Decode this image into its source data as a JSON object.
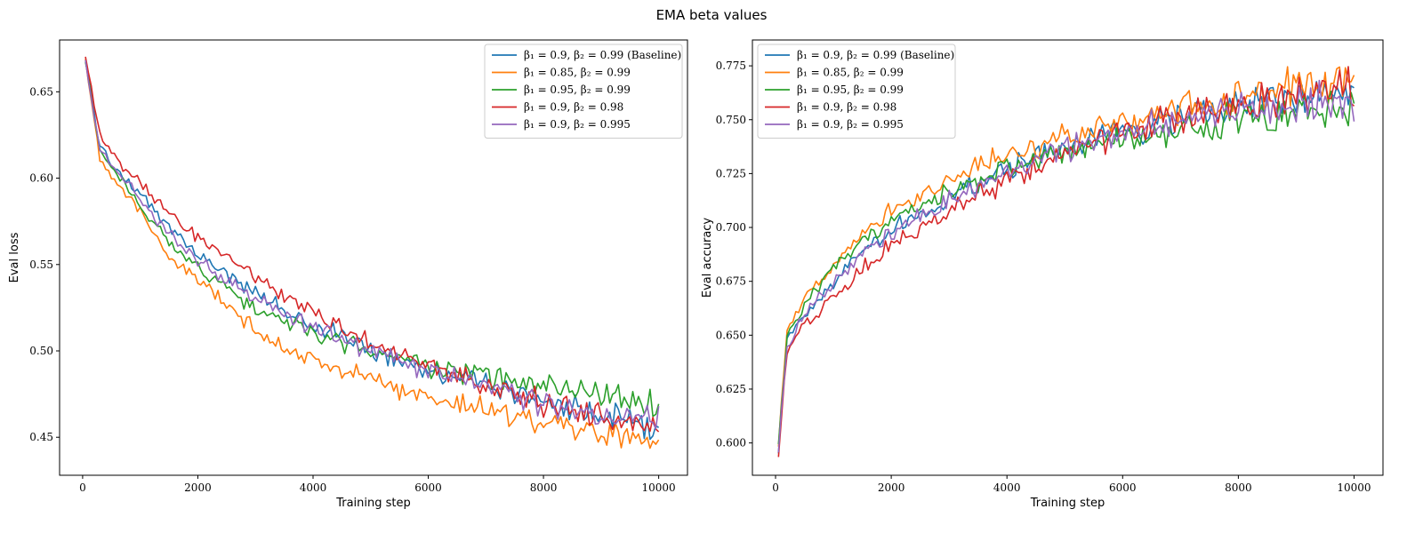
{
  "figure": {
    "suptitle": "EMA beta values"
  },
  "chart_data": [
    {
      "type": "line",
      "title": "",
      "xlabel": "Training step",
      "ylabel": "Eval loss",
      "xlim": [
        -400,
        10500
      ],
      "ylim": [
        0.428,
        0.68
      ],
      "xticks": [
        0,
        2000,
        4000,
        6000,
        8000,
        10000
      ],
      "yticks": [
        0.45,
        0.5,
        0.55,
        0.6,
        0.65
      ],
      "ytick_labels": [
        "0.45",
        "0.50",
        "0.55",
        "0.60",
        "0.65"
      ],
      "legend_position": "top-right",
      "series": [
        {
          "name": "β1 = 0.9, β2 = 0.99 (Baseline)",
          "legend_label": "β₁ = 0.9, β₂ = 0.99 (Baseline)",
          "color": "#1f77b4",
          "x": [
            50,
            300,
            600,
            1000,
            1500,
            2000,
            3000,
            4000,
            5000,
            6000,
            7000,
            8000,
            9000,
            10000
          ],
          "y": [
            0.668,
            0.618,
            0.605,
            0.59,
            0.572,
            0.556,
            0.533,
            0.515,
            0.501,
            0.49,
            0.48,
            0.471,
            0.462,
            0.456
          ]
        },
        {
          "name": "β1 = 0.85, β2 = 0.99",
          "legend_label": "β₁ = 0.85, β₂ = 0.99",
          "color": "#ff7f0e",
          "x": [
            50,
            300,
            600,
            1000,
            1500,
            2000,
            3000,
            4000,
            5000,
            6000,
            7000,
            8000,
            9000,
            10000
          ],
          "y": [
            0.668,
            0.612,
            0.598,
            0.58,
            0.555,
            0.541,
            0.512,
            0.494,
            0.483,
            0.474,
            0.466,
            0.459,
            0.453,
            0.449
          ]
        },
        {
          "name": "β1 = 0.95, β2 = 0.99",
          "legend_label": "β₁ = 0.95, β₂ = 0.99",
          "color": "#2ca02c",
          "x": [
            50,
            300,
            600,
            1000,
            1500,
            2000,
            3000,
            4000,
            5000,
            6000,
            7000,
            8000,
            9000,
            10000
          ],
          "y": [
            0.668,
            0.615,
            0.602,
            0.585,
            0.562,
            0.549,
            0.524,
            0.51,
            0.499,
            0.491,
            0.485,
            0.479,
            0.474,
            0.47
          ]
        },
        {
          "name": "β1 = 0.9, β2 = 0.98",
          "legend_label": "β₁ = 0.9, β₂ = 0.98",
          "color": "#d62728",
          "x": [
            50,
            300,
            600,
            1000,
            1500,
            2000,
            3000,
            4000,
            5000,
            6000,
            7000,
            8000,
            9000,
            10000
          ],
          "y": [
            0.67,
            0.625,
            0.61,
            0.597,
            0.58,
            0.566,
            0.543,
            0.522,
            0.505,
            0.492,
            0.481,
            0.47,
            0.461,
            0.454
          ]
        },
        {
          "name": "β1 = 0.9, β2 = 0.995",
          "legend_label": "β₁ = 0.9, β₂ = 0.995",
          "color": "#9467bd",
          "x": [
            50,
            300,
            600,
            1000,
            1500,
            2000,
            3000,
            4000,
            5000,
            6000,
            7000,
            8000,
            9000,
            10000
          ],
          "y": [
            0.667,
            0.617,
            0.604,
            0.588,
            0.568,
            0.552,
            0.53,
            0.513,
            0.5,
            0.489,
            0.479,
            0.47,
            0.462,
            0.458
          ]
        }
      ]
    },
    {
      "type": "line",
      "title": "",
      "xlabel": "Training step",
      "ylabel": "Eval accuracy",
      "xlim": [
        -400,
        10500
      ],
      "ylim": [
        0.585,
        0.787
      ],
      "xticks": [
        0,
        2000,
        4000,
        6000,
        8000,
        10000
      ],
      "yticks": [
        0.6,
        0.625,
        0.65,
        0.675,
        0.7,
        0.725,
        0.75,
        0.775
      ],
      "ytick_labels": [
        "0.600",
        "0.625",
        "0.650",
        "0.675",
        "0.700",
        "0.725",
        "0.750",
        "0.775"
      ],
      "legend_position": "top-left",
      "series": [
        {
          "name": "β1 = 0.9, β2 = 0.99 (Baseline)",
          "legend_label": "β₁ = 0.9, β₂ = 0.99 (Baseline)",
          "color": "#1f77b4",
          "x": [
            50,
            200,
            500,
            1000,
            1500,
            2000,
            3000,
            4000,
            5000,
            6000,
            7000,
            8000,
            9000,
            10000
          ],
          "y": [
            0.598,
            0.648,
            0.66,
            0.675,
            0.689,
            0.699,
            0.714,
            0.727,
            0.737,
            0.745,
            0.751,
            0.756,
            0.759,
            0.762
          ]
        },
        {
          "name": "β1 = 0.85, β2 = 0.99",
          "legend_label": "β₁ = 0.85, β₂ = 0.99",
          "color": "#ff7f0e",
          "x": [
            50,
            200,
            500,
            1000,
            1500,
            2000,
            3000,
            4000,
            5000,
            6000,
            7000,
            8000,
            9000,
            10000
          ],
          "y": [
            0.6,
            0.652,
            0.666,
            0.684,
            0.698,
            0.708,
            0.722,
            0.734,
            0.742,
            0.749,
            0.755,
            0.76,
            0.765,
            0.768
          ]
        },
        {
          "name": "β1 = 0.95, β2 = 0.99",
          "legend_label": "β₁ = 0.95, β₂ = 0.99",
          "color": "#2ca02c",
          "x": [
            50,
            200,
            500,
            1000,
            1500,
            2000,
            3000,
            4000,
            5000,
            6000,
            7000,
            8000,
            9000,
            10000
          ],
          "y": [
            0.6,
            0.65,
            0.664,
            0.681,
            0.694,
            0.703,
            0.716,
            0.727,
            0.735,
            0.741,
            0.745,
            0.749,
            0.752,
            0.755
          ]
        },
        {
          "name": "β1 = 0.9, β2 = 0.98",
          "legend_label": "β₁ = 0.9, β₂ = 0.98",
          "color": "#d62728",
          "x": [
            50,
            200,
            500,
            1000,
            1500,
            2000,
            3000,
            4000,
            5000,
            6000,
            7000,
            8000,
            9000,
            10000
          ],
          "y": [
            0.596,
            0.642,
            0.655,
            0.668,
            0.681,
            0.692,
            0.708,
            0.722,
            0.734,
            0.744,
            0.751,
            0.757,
            0.762,
            0.766
          ]
        },
        {
          "name": "β1 = 0.9, β2 = 0.995",
          "legend_label": "β₁ = 0.9, β₂ = 0.995",
          "color": "#9467bd",
          "x": [
            50,
            200,
            500,
            1000,
            1500,
            2000,
            3000,
            4000,
            5000,
            6000,
            7000,
            8000,
            9000,
            10000
          ],
          "y": [
            0.597,
            0.646,
            0.659,
            0.674,
            0.688,
            0.698,
            0.713,
            0.726,
            0.736,
            0.744,
            0.75,
            0.754,
            0.757,
            0.759
          ]
        }
      ]
    }
  ]
}
